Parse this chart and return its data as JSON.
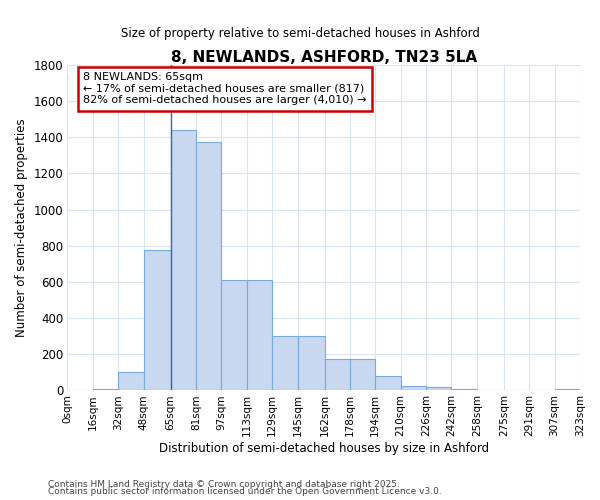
{
  "title": "8, NEWLANDS, ASHFORD, TN23 5LA",
  "subtitle": "Size of property relative to semi-detached houses in Ashford",
  "xlabel": "Distribution of semi-detached houses by size in Ashford",
  "ylabel": "Number of semi-detached properties",
  "bar_color": "#c8d8f0",
  "bar_edge_color": "#7aaad8",
  "background_color": "#ffffff",
  "grid_color": "#d8e4f0",
  "annotation_line_color": "#4060c0",
  "annotation_box_color": "#cc0000",
  "property_value": 65,
  "annotation_label": "8 NEWLANDS: 65sqm",
  "annotation_line1": "← 17% of semi-detached houses are smaller (817)",
  "annotation_line2": "82% of semi-detached houses are larger (4,010) →",
  "bin_edges": [
    0,
    16,
    32,
    48,
    65,
    81,
    97,
    113,
    129,
    145,
    162,
    178,
    194,
    210,
    226,
    242,
    258,
    275,
    291,
    307,
    323
  ],
  "bin_labels": [
    "0sqm",
    "16sqm",
    "32sqm",
    "48sqm",
    "65sqm",
    "81sqm",
    "97sqm",
    "113sqm",
    "129sqm",
    "145sqm",
    "162sqm",
    "178sqm",
    "194sqm",
    "210sqm",
    "226sqm",
    "242sqm",
    "258sqm",
    "275sqm",
    "291sqm",
    "307sqm",
    "323sqm"
  ],
  "counts": [
    3,
    5,
    100,
    775,
    1440,
    1375,
    610,
    610,
    300,
    300,
    175,
    175,
    80,
    25,
    15,
    5,
    3,
    3,
    3,
    5
  ],
  "ylim": [
    0,
    1800
  ],
  "yticks": [
    0,
    200,
    400,
    600,
    800,
    1000,
    1200,
    1400,
    1600,
    1800
  ],
  "footnote1": "Contains HM Land Registry data © Crown copyright and database right 2025.",
  "footnote2": "Contains public sector information licensed under the Open Government Licence v3.0."
}
